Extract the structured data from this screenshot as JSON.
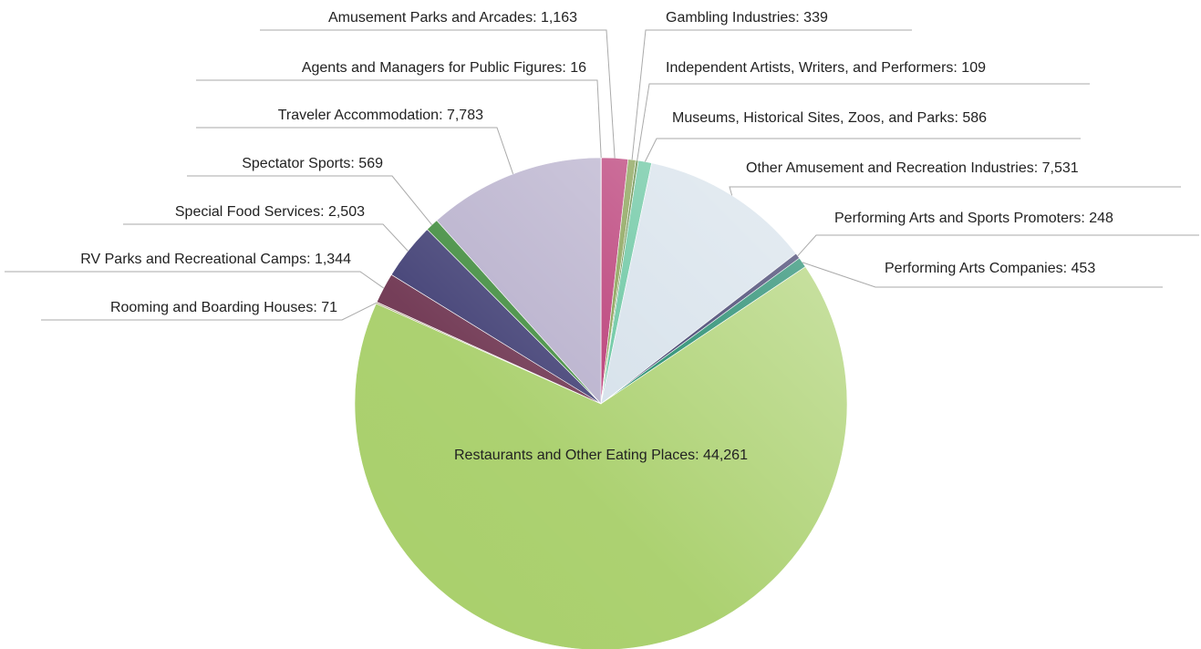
{
  "chart_data": {
    "type": "pie",
    "labels": [
      "Agents and Managers for Public Figures: 16",
      "Amusement Parks and Arcades: 1,163",
      "Gambling Industries: 339",
      "Independent Artists, Writers, and Performers: 109",
      "Museums, Historical Sites, Zoos, and Parks: 586",
      "Other Amusement and Recreation Industries: 7,531",
      "Performing Arts and Sports Promoters: 248",
      "Performing Arts Companies: 453",
      "Restaurants and Other Eating Places: 44,261",
      "Rooming and Boarding Houses: 71",
      "RV Parks and Recreational Camps: 1,344",
      "Special Food Services: 2,503",
      "Spectator Sports: 569",
      "Traveler Accommodation: 7,783"
    ],
    "values": [
      16,
      1163,
      339,
      109,
      586,
      7531,
      248,
      453,
      44261,
      71,
      1344,
      2503,
      569,
      7783
    ],
    "colors": [
      "#7a6a9a",
      "#b5306e",
      "#7f9a48",
      "#4e7b2f",
      "#5ec29a",
      "#d3dfe9",
      "#2b2a5c",
      "#0d8060",
      "#a8cf6a",
      "#b8a890",
      "#6e3450",
      "#3f3d73",
      "#3d8a3a",
      "#b6aecb"
    ]
  }
}
